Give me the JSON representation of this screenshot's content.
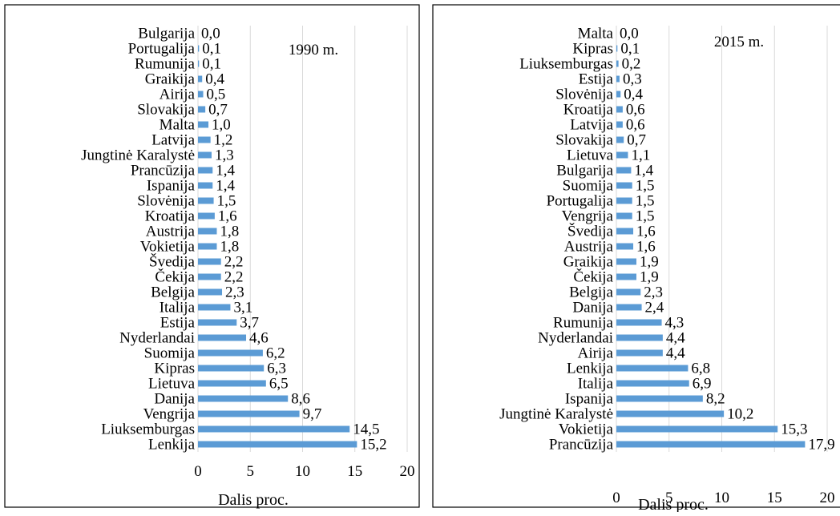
{
  "chart_data": [
    {
      "type": "bar",
      "orientation": "horizontal",
      "title": "1990 m.",
      "xlabel": "Dalis proc.",
      "ylabel": "",
      "xlim": [
        0,
        20
      ],
      "xticks": [
        "0",
        "5",
        "10",
        "15",
        "20"
      ],
      "grid": true,
      "bar_color": "#5b9bd5",
      "categories": [
        "Bulgarija",
        "Portugalija",
        "Rumunija",
        "Graikija",
        "Airija",
        "Slovakija",
        "Malta",
        "Latvija",
        "Jungtinė Karalystė",
        "Prancūzija",
        "Ispanija",
        "Slovėnija",
        "Kroatija",
        "Austrija",
        "Vokietija",
        "Švedija",
        "Čekija",
        "Belgija",
        "Italija",
        "Estija",
        "Nyderlandai",
        "Suomija",
        "Kipras",
        "Lietuva",
        "Danija",
        "Vengrija",
        "Liuksemburgas",
        "Lenkija"
      ],
      "values": [
        0.0,
        0.1,
        0.1,
        0.4,
        0.5,
        0.7,
        1.0,
        1.2,
        1.3,
        1.4,
        1.4,
        1.5,
        1.6,
        1.8,
        1.8,
        2.2,
        2.2,
        2.3,
        3.1,
        3.7,
        4.6,
        6.2,
        6.3,
        6.5,
        8.6,
        9.7,
        14.5,
        15.2
      ],
      "value_labels": [
        "0,0",
        "0,1",
        "0,1",
        "0,4",
        "0,5",
        "0,7",
        "1,0",
        "1,2",
        "1,3",
        "1,4",
        "1,4",
        "1,5",
        "1,6",
        "1,8",
        "1,8",
        "2,2",
        "2,2",
        "2,3",
        "3,1",
        "3,7",
        "4,6",
        "6,2",
        "6,3",
        "6,5",
        "8,6",
        "9,7",
        "14,5",
        "15,2"
      ]
    },
    {
      "type": "bar",
      "orientation": "horizontal",
      "title": "2015 m.",
      "xlabel": "Dalis proc.",
      "ylabel": "",
      "xlim": [
        0,
        20
      ],
      "xticks": [
        "0",
        "5",
        "10",
        "15",
        "20"
      ],
      "grid": true,
      "bar_color": "#5b9bd5",
      "categories": [
        "Malta",
        "Kipras",
        "Liuksemburgas",
        "Estija",
        "Slovėnija",
        "Kroatija",
        "Latvija",
        "Slovakija",
        "Lietuva",
        "Bulgarija",
        "Suomija",
        "Portugalija",
        "Vengrija",
        "Švedija",
        "Austrija",
        "Graikija",
        "Čekija",
        "Belgija",
        "Danija",
        "Rumunija",
        "Nyderlandai",
        "Airija",
        "Lenkija",
        "Italija",
        "Ispanija",
        "Jungtinė Karalystė",
        "Vokietija",
        "Prancūzija"
      ],
      "values": [
        0.0,
        0.1,
        0.2,
        0.3,
        0.4,
        0.6,
        0.6,
        0.7,
        1.1,
        1.4,
        1.5,
        1.5,
        1.5,
        1.6,
        1.6,
        1.9,
        1.9,
        2.3,
        2.4,
        4.3,
        4.4,
        4.4,
        6.8,
        6.9,
        8.2,
        10.2,
        15.3,
        17.9
      ],
      "value_labels": [
        "0,0",
        "0,1",
        "0,2",
        "0,3",
        "0,4",
        "0,6",
        "0,6",
        "0,7",
        "1,1",
        "1,4",
        "1,5",
        "1,5",
        "1,5",
        "1,6",
        "1,6",
        "1,9",
        "1,9",
        "2,3",
        "2,4",
        "4,3",
        "4,4",
        "4,4",
        "6,8",
        "6,9",
        "8,2",
        "10,2",
        "15,3",
        "17,9"
      ]
    }
  ]
}
